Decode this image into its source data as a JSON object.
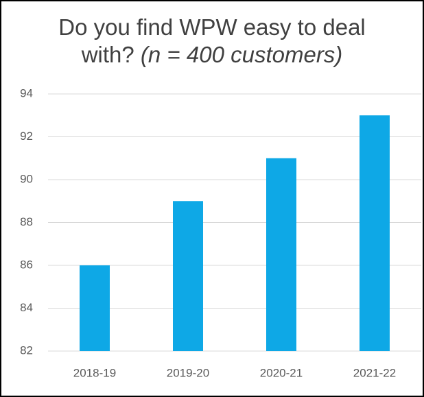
{
  "chart_data": {
    "type": "bar",
    "title": "Do you find WPW easy to deal with?",
    "subtitle": "(n = 400 customers)",
    "categories": [
      "2018-19",
      "2019-20",
      "2020-21",
      "2021-22"
    ],
    "values": [
      86,
      89,
      91,
      93
    ],
    "color": "#0ea8e6",
    "ylim": [
      82,
      94
    ],
    "yticks": [
      82,
      84,
      86,
      88,
      90,
      92,
      94
    ],
    "grid": true
  }
}
